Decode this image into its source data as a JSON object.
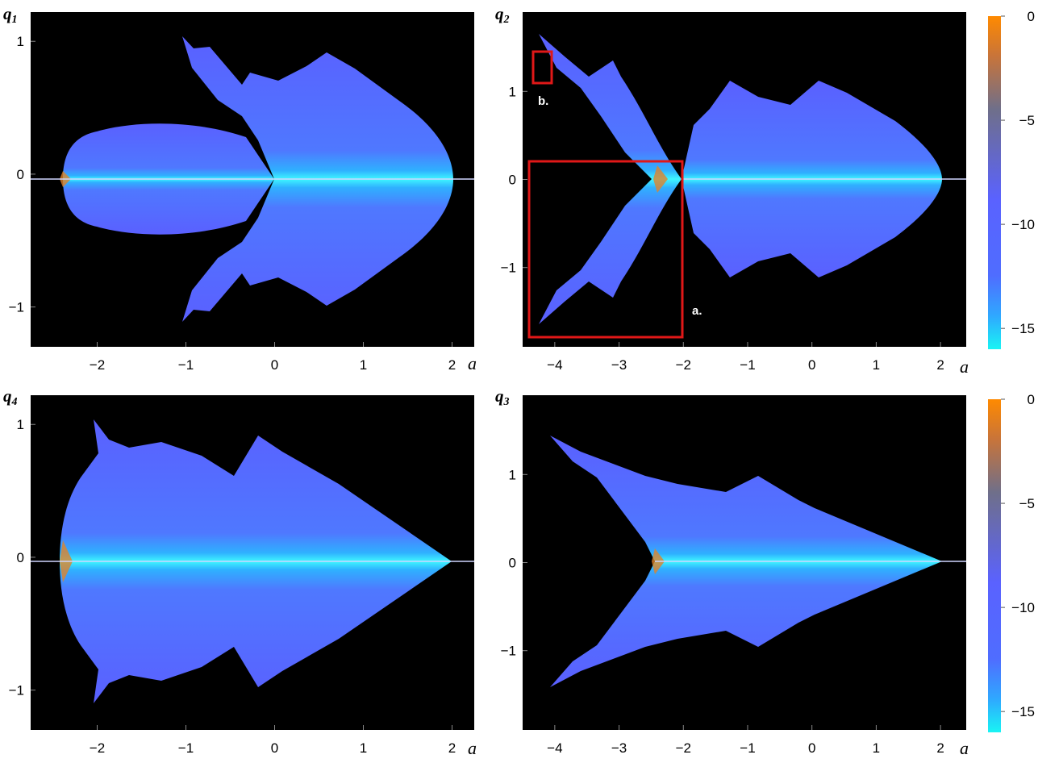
{
  "colors": {
    "background": "#000000",
    "highlight_box": "#e01818",
    "colorbar_top": "#ff8a00",
    "colorbar_mid": "#5a62ff",
    "colorbar_bottom": "#19f4f4"
  },
  "chart_data": [
    {
      "type": "heatmap",
      "id": "q1",
      "ylabel": "q",
      "ylabel_sub": "1",
      "xlabel": "a",
      "xlim": [
        -2.75,
        2.25
      ],
      "ylim": [
        -1.3,
        1.22
      ],
      "xticks": [
        -2,
        -1,
        0,
        1,
        2
      ],
      "xtick_labels": [
        "−2",
        "−1",
        "0",
        "1",
        "2"
      ],
      "yticks": [
        -1,
        0,
        1
      ],
      "ytick_labels": [
        "−1",
        "0",
        "1"
      ],
      "grid": false
    },
    {
      "type": "heatmap",
      "id": "q2",
      "ylabel": "q",
      "ylabel_sub": "2",
      "xlabel": "a",
      "xlim": [
        -4.5,
        2.4
      ],
      "ylim": [
        -1.9,
        1.9
      ],
      "xticks": [
        -4,
        -3,
        -2,
        -1,
        0,
        1,
        2
      ],
      "xtick_labels": [
        "−4",
        "−3",
        "−2",
        "−1",
        "0",
        "1",
        "2"
      ],
      "yticks": [
        -1,
        0,
        1
      ],
      "ytick_labels": [
        "−1",
        "0",
        "1"
      ],
      "grid": false,
      "annotations": [
        {
          "label": "a.",
          "x_range": [
            -4.35,
            -2.0
          ],
          "y_range": [
            -1.8,
            0.2
          ]
        },
        {
          "label": "b.",
          "x_range": [
            -4.3,
            -4.0
          ],
          "y_range": [
            1.1,
            1.45
          ]
        }
      ],
      "colorbar": {
        "ticks": [
          0,
          -5,
          -10,
          -15
        ],
        "tick_labels": [
          "0",
          "−5",
          "−10",
          "−15"
        ],
        "range": [
          -16,
          0
        ]
      }
    },
    {
      "type": "heatmap",
      "id": "q4",
      "ylabel": "q",
      "ylabel_sub": "4",
      "xlabel": "a",
      "xlim": [
        -2.75,
        2.25
      ],
      "ylim": [
        -1.3,
        1.22
      ],
      "xticks": [
        -2,
        -1,
        0,
        1,
        2
      ],
      "xtick_labels": [
        "−2",
        "−1",
        "0",
        "1",
        "2"
      ],
      "yticks": [
        -1,
        0,
        1
      ],
      "ytick_labels": [
        "−1",
        "0",
        "1"
      ],
      "grid": false
    },
    {
      "type": "heatmap",
      "id": "q3",
      "ylabel": "q",
      "ylabel_sub": "3",
      "xlabel": "a",
      "xlim": [
        -4.5,
        2.4
      ],
      "ylim": [
        -1.9,
        1.9
      ],
      "xticks": [
        -4,
        -3,
        -2,
        -1,
        0,
        1,
        2
      ],
      "xtick_labels": [
        "−4",
        "−3",
        "−2",
        "−1",
        "0",
        "1",
        "2"
      ],
      "yticks": [
        -1,
        0,
        1
      ],
      "ytick_labels": [
        "−1",
        "0",
        "1"
      ],
      "grid": false,
      "colorbar": {
        "ticks": [
          0,
          -5,
          -10,
          -15
        ],
        "tick_labels": [
          "0",
          "−5",
          "−10",
          "−15"
        ],
        "range": [
          -16,
          0
        ]
      }
    }
  ]
}
